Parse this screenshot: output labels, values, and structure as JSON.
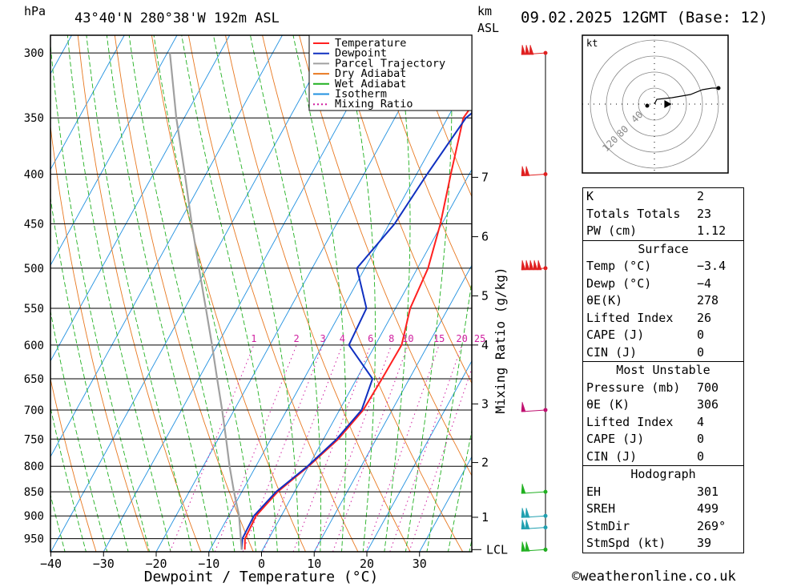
{
  "header": {
    "pressure_unit": "hPa",
    "location": "43°40'N  280°38'W  192m  ASL",
    "height_unit": "km",
    "height_ref": "ASL",
    "datetime": "09.02.2025  12GMT  (Base: 12)"
  },
  "chart_data": {
    "type": "line",
    "xlabel": "Dewpoint / Temperature (°C)",
    "ylabel": "hPa",
    "xlim": [
      -40,
      40
    ],
    "ylim": [
      980,
      300
    ],
    "y_scale": "log",
    "x_ticks": [
      -40,
      -30,
      -20,
      -10,
      0,
      10,
      20,
      30
    ],
    "x_tick_labels": [
      "−40",
      "−30",
      "−20",
      "−10",
      "0",
      "10",
      "20",
      "30"
    ],
    "pressure_levels": [
      300,
      350,
      400,
      450,
      500,
      550,
      600,
      650,
      700,
      750,
      800,
      850,
      900,
      950
    ],
    "km_label": "km",
    "km_ticks": [
      {
        "label": "1",
        "p": 903
      },
      {
        "label": "2",
        "p": 793
      },
      {
        "label": "3",
        "p": 690
      },
      {
        "label": "4",
        "p": 600
      },
      {
        "label": "5",
        "p": 534
      },
      {
        "label": "6",
        "p": 464
      },
      {
        "label": "7",
        "p": 403
      }
    ],
    "lcl": {
      "label": "LCL",
      "p": 975
    },
    "mixing_ratio_axis_label": "Mixing Ratio (g/kg)",
    "mixing_ratio_labels": [
      "1",
      "2",
      "3",
      "4",
      "6",
      "8",
      "10",
      "15",
      "20",
      "25"
    ],
    "mixing_ratios": [
      1,
      2,
      3,
      4,
      6,
      8,
      10,
      15,
      20,
      25
    ],
    "legend": {
      "position": "top-right",
      "entries": [
        {
          "label": "Temperature",
          "color": "#ff2020"
        },
        {
          "label": "Dewpoint",
          "color": "#1030c0"
        },
        {
          "label": "Parcel Trajectory",
          "color": "#a0a0a0"
        },
        {
          "label": "Dry Adiabat",
          "color": "#e87820"
        },
        {
          "label": "Wet Adiabat",
          "color": "#20b020"
        },
        {
          "label": "Isotherm",
          "color": "#2090e0"
        },
        {
          "label": "Mixing Ratio",
          "color": "#d020a0"
        }
      ]
    },
    "series": [
      {
        "name": "Temperature",
        "color": "#ff2020",
        "points": [
          {
            "p": 975,
            "t": -3.4
          },
          {
            "p": 950,
            "t": -4.5
          },
          {
            "p": 900,
            "t": -4.8
          },
          {
            "p": 850,
            "t": -3.2
          },
          {
            "p": 800,
            "t": 0.0
          },
          {
            "p": 750,
            "t": 2.8
          },
          {
            "p": 700,
            "t": 4.5
          },
          {
            "p": 650,
            "t": 4.8
          },
          {
            "p": 600,
            "t": 5.0
          },
          {
            "p": 550,
            "t": 2.8
          },
          {
            "p": 500,
            "t": 2.0
          },
          {
            "p": 450,
            "t": -0.3
          },
          {
            "p": 400,
            "t": -3.5
          },
          {
            "p": 350,
            "t": -7.0
          },
          {
            "p": 300,
            "t": -5.0
          }
        ]
      },
      {
        "name": "Dewpoint",
        "color": "#1030c0",
        "points": [
          {
            "p": 975,
            "t": -4.0
          },
          {
            "p": 950,
            "t": -5.0
          },
          {
            "p": 900,
            "t": -5.2
          },
          {
            "p": 850,
            "t": -3.5
          },
          {
            "p": 800,
            "t": -0.2
          },
          {
            "p": 750,
            "t": 2.5
          },
          {
            "p": 700,
            "t": 4.2
          },
          {
            "p": 650,
            "t": 3.0
          },
          {
            "p": 600,
            "t": -5.0
          },
          {
            "p": 550,
            "t": -5.5
          },
          {
            "p": 500,
            "t": -11.5
          },
          {
            "p": 450,
            "t": -9.0
          },
          {
            "p": 400,
            "t": -8.0
          },
          {
            "p": 350,
            "t": -6.5
          },
          {
            "p": 300,
            "t": 2.0
          }
        ]
      },
      {
        "name": "Parcel Trajectory",
        "color": "#a0a0a0",
        "points": [
          {
            "p": 975,
            "t": -4.0
          },
          {
            "p": 900,
            "t": -8.0
          },
          {
            "p": 850,
            "t": -11.5
          },
          {
            "p": 800,
            "t": -15.0
          },
          {
            "p": 750,
            "t": -18.5
          },
          {
            "p": 700,
            "t": -22.3
          },
          {
            "p": 650,
            "t": -26.5
          },
          {
            "p": 600,
            "t": -31.0
          },
          {
            "p": 550,
            "t": -36.0
          },
          {
            "p": 500,
            "t": -41.5
          },
          {
            "p": 450,
            "t": -47.5
          },
          {
            "p": 400,
            "t": -54.0
          },
          {
            "p": 350,
            "t": -61.5
          },
          {
            "p": 300,
            "t": -69.5
          }
        ]
      }
    ],
    "wind_barbs": [
      {
        "p": 300,
        "color": "#e02020",
        "flags": 3
      },
      {
        "p": 400,
        "color": "#e02020",
        "flags": 2
      },
      {
        "p": 500,
        "color": "#e02020",
        "flags": 5
      },
      {
        "p": 700,
        "color": "#c01070",
        "flags": 1
      },
      {
        "p": 850,
        "color": "#20b020",
        "flags": 1
      },
      {
        "p": 900,
        "color": "#20a0b0",
        "flags": 2
      },
      {
        "p": 925,
        "color": "#20a0b0",
        "flags": 2
      },
      {
        "p": 975,
        "color": "#20b020",
        "flags": 2
      }
    ],
    "hodograph": {
      "unit": "kt",
      "ring_labels": [
        "40",
        "80",
        "120"
      ],
      "trace": [
        [
          0,
          0
        ],
        [
          3,
          -6
        ],
        [
          22,
          -8
        ],
        [
          45,
          -12
        ],
        [
          60,
          -18
        ],
        [
          72,
          -20
        ],
        [
          80,
          -20
        ]
      ],
      "storm_motion_dir_deg": 269,
      "storm_motion_kt": 39
    }
  },
  "indices": {
    "general": [
      {
        "label": "K",
        "value": "2"
      },
      {
        "label": "Totals Totals",
        "value": "23"
      },
      {
        "label": "PW (cm)",
        "value": "1.12"
      }
    ],
    "surface": {
      "title": "Surface",
      "rows": [
        {
          "label": "Temp (°C)",
          "value": "−3.4"
        },
        {
          "label": "Dewp (°C)",
          "value": "−4"
        },
        {
          "label": "θE(K)",
          "value": "278"
        },
        {
          "label": "Lifted Index",
          "value": "26"
        },
        {
          "label": "CAPE (J)",
          "value": "0"
        },
        {
          "label": "CIN (J)",
          "value": "0"
        }
      ]
    },
    "most_unstable": {
      "title": "Most Unstable",
      "rows": [
        {
          "label": "Pressure (mb)",
          "value": "700"
        },
        {
          "label": "θE (K)",
          "value": "306"
        },
        {
          "label": "Lifted Index",
          "value": "4"
        },
        {
          "label": "CAPE (J)",
          "value": "0"
        },
        {
          "label": "CIN (J)",
          "value": "0"
        }
      ]
    },
    "hodograph": {
      "title": "Hodograph",
      "rows": [
        {
          "label": "EH",
          "value": "301"
        },
        {
          "label": "SREH",
          "value": "499"
        },
        {
          "label": "StmDir",
          "value": "269°"
        },
        {
          "label": "StmSpd (kt)",
          "value": "39"
        }
      ]
    }
  },
  "footer": {
    "copyright": "©weatheronline.co.uk"
  }
}
